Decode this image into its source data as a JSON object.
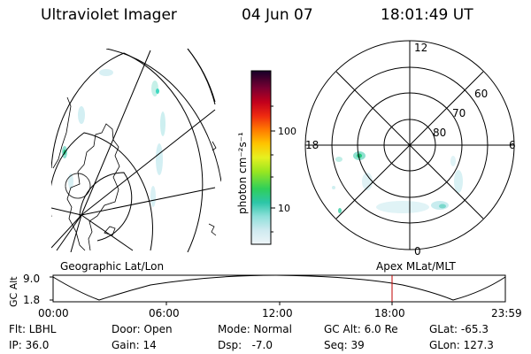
{
  "header": {
    "instrument": "Ultraviolet Imager",
    "date": "04 Jun 07",
    "time": "18:01:49 UT"
  },
  "colorbar": {
    "unit_label": "photon cm⁻²s⁻¹",
    "ticks": [
      "100",
      "10"
    ],
    "scale": "log",
    "colors_bottom_to_top": [
      "#e8f2f6",
      "#bfe6ee",
      "#6fdbd2",
      "#22c3a6",
      "#30d060",
      "#7ee020",
      "#d8f020",
      "#ffd000",
      "#ff8a00",
      "#f03010",
      "#c0001c",
      "#7a0030",
      "#1c0030"
    ]
  },
  "polar_plot": {
    "labels": [
      "12",
      "60",
      "70",
      "80",
      "18",
      "6",
      "0"
    ]
  },
  "timeline": {
    "left_label": "Geographic Lat/Lon",
    "right_label": "Apex MLat/MLT",
    "axis_title": "GC Alt",
    "y_ticks": [
      "9.0",
      "1.8"
    ],
    "x_ticks": [
      "00:00",
      "06:00",
      "12:00",
      "18:00",
      "23:59"
    ],
    "current_time_marker": "18:02",
    "marker_color": "#c00000"
  },
  "info": {
    "filter": "Flt: LBHL",
    "ip": "IP: 36.0",
    "door": "Door: Open",
    "gain": "Gain: 14",
    "mode": "Mode: Normal",
    "dsp": "Dsp:   -7.0",
    "gc_alt": "GC Alt: 6.0 Re",
    "seq": "Seq: 39",
    "glat": "GLat: -65.3",
    "glon": "GLon: 127.3"
  }
}
